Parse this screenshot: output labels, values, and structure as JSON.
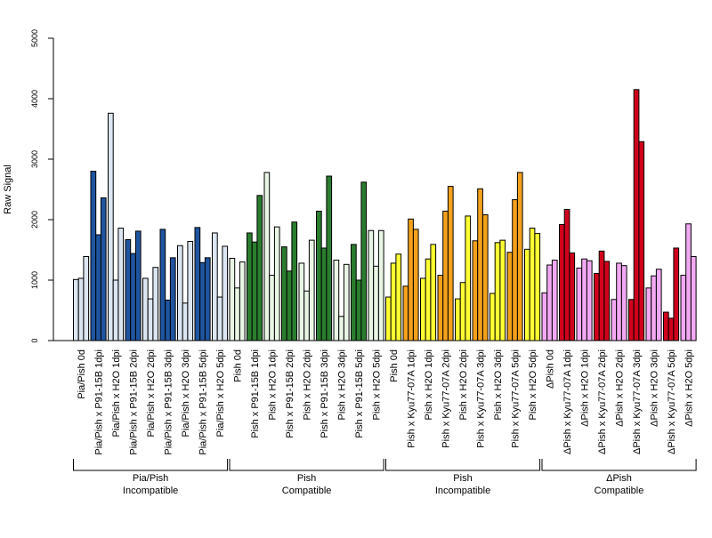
{
  "chart_data": {
    "type": "bar",
    "ylabel": "Raw Signal",
    "ylim": [
      0,
      5000
    ],
    "yticks": [
      0,
      1000,
      2000,
      3000,
      4000,
      5000
    ],
    "replicates": 3,
    "categories": [
      "Pia/Pish 0d",
      "Pia/Pish x P91-15B 1dpi",
      "Pia/Pish x H2O 1dpi",
      "Pia/Pish x P91-15B 2dpi",
      "Pia/Pish x H2O 2dpi",
      "Pia/Pish x P91-15B 3dpi",
      "Pia/Pish x H2O 3dpi",
      "Pia/Pish x P91-15B 5dpi",
      "Pia/Pish x H2O 5dpi",
      "Pish 0d",
      "Pish x P91-15B 1dpi",
      "Pish x H2O 1dpi",
      "Pish x P91-15B 2dpi",
      "Pish x H2O 2dpi",
      "Pish x P91-15B 3dpi",
      "Pish x H2O 3dpi",
      "Pish x P91-15B 5dpi",
      "Pish x H2O 5dpi",
      "Pish 0d",
      "Pish x Kyu77-07A 1dpi",
      "Pish x H2O 1dpi",
      "Pish x Kyu77-07A 2dpi",
      "Pish x H2O 2dpi",
      "Pish x Kyu77-07A 3dpi",
      "Pish x H2O 3dpi",
      "Pish x Kyu77-07A 5dpi",
      "Pish x H2O 5dpi",
      "ΔPish 0d",
      "ΔPish x Kyu77-07A 1dpi",
      "ΔPish x H2O 1dpi",
      "ΔPish x Kyu77-07A 2dpi",
      "ΔPish x H2O 2dpi",
      "ΔPish x Kyu77-07A 3dpi",
      "ΔPish x H2O 3dpi",
      "ΔPish x Kyu77-07A 5dpi",
      "ΔPish x H2O 5dpi"
    ],
    "values": [
      [
        1010,
        1030,
        1390
      ],
      [
        2800,
        1750,
        2360
      ],
      [
        3760,
        1000,
        1860
      ],
      [
        1670,
        1440,
        1810
      ],
      [
        1030,
        690,
        1210
      ],
      [
        1840,
        670,
        1370
      ],
      [
        1570,
        620,
        1640
      ],
      [
        1870,
        1290,
        1370
      ],
      [
        1780,
        720,
        1560
      ],
      [
        1360,
        870,
        1300
      ],
      [
        1780,
        1630,
        2400
      ],
      [
        2780,
        1080,
        1880
      ],
      [
        1550,
        1150,
        1960
      ],
      [
        1280,
        820,
        1660
      ],
      [
        2140,
        1530,
        2720
      ],
      [
        1330,
        400,
        1260
      ],
      [
        1590,
        1000,
        2620
      ],
      [
        1820,
        1230,
        1820
      ],
      [
        720,
        1280,
        1430
      ],
      [
        900,
        2010,
        1840
      ],
      [
        1030,
        1350,
        1590
      ],
      [
        1080,
        2140,
        2550
      ],
      [
        690,
        960,
        2060
      ],
      [
        1650,
        2510,
        2080
      ],
      [
        780,
        1620,
        1660
      ],
      [
        1460,
        2330,
        2780
      ],
      [
        1510,
        1860,
        1770
      ],
      [
        790,
        1250,
        1330
      ],
      [
        1920,
        2170,
        1450
      ],
      [
        1200,
        1350,
        1320
      ],
      [
        1110,
        1480,
        1310
      ],
      [
        680,
        1280,
        1240
      ],
      [
        680,
        4150,
        3290
      ],
      [
        870,
        1070,
        1180
      ],
      [
        470,
        370,
        1530
      ],
      [
        1080,
        1930,
        1390
      ]
    ],
    "bar_colors": [
      "#DCE6F2",
      "#1F55A0",
      "#DCE6F2",
      "#1F55A0",
      "#DCE6F2",
      "#1F55A0",
      "#DCE6F2",
      "#1F55A0",
      "#DCE6F2",
      "#E9F5E5",
      "#2A7D2E",
      "#E9F5E5",
      "#2A7D2E",
      "#E9F5E5",
      "#2A7D2E",
      "#E9F5E5",
      "#2A7D2E",
      "#E9F5E5",
      "#FFFF33",
      "#F4A11B",
      "#FFFF33",
      "#F4A11B",
      "#FFFF33",
      "#F4A11B",
      "#FFFF33",
      "#F4A11B",
      "#FFFF33",
      "#F3A8F3",
      "#D0021B",
      "#F3A8F3",
      "#D0021B",
      "#F3A8F3",
      "#D0021B",
      "#F3A8F3",
      "#D0021B",
      "#F3A8F3"
    ],
    "groups": [
      {
        "line1": "Pia/Pish",
        "line2": "Incompatible"
      },
      {
        "line1": "Pish",
        "line2": "Compatible"
      },
      {
        "line1": "Pish",
        "line2": "Incompatible"
      },
      {
        "line1": "ΔPish",
        "line2": "Compatible"
      }
    ],
    "grid": false,
    "legend": "none"
  }
}
